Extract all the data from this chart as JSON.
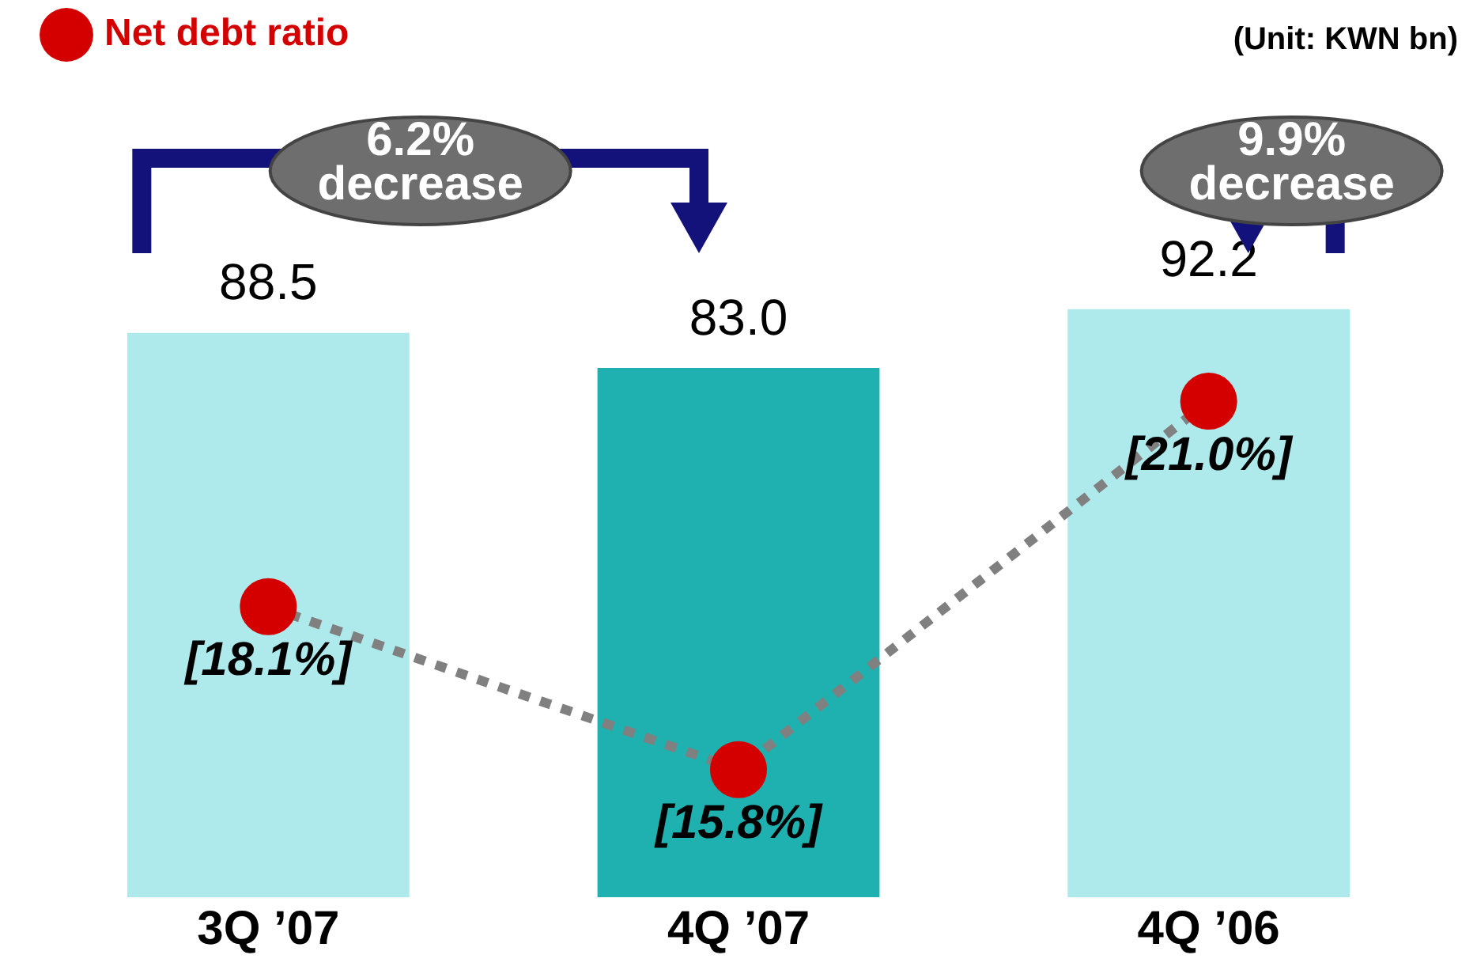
{
  "chart_data": {
    "type": "bar",
    "categories": [
      "3Q ’07",
      "4Q ’07",
      "4Q ’06"
    ],
    "series": [
      {
        "colors": [
          "#aeeaec",
          "#1fb0b0",
          "#aeeaec"
        ],
        "values": [
          88.5,
          83.0,
          92.2
        ],
        "value_labels": [
          "88.5",
          "83.0",
          "92.2"
        ]
      },
      {
        "type": "line",
        "name": "Net debt ratio",
        "color": "#808080",
        "colors": [
          "#d40000",
          "#d40000",
          "#d40000"
        ],
        "axis": "y2",
        "values": [
          18.1,
          15.8,
          21.0
        ],
        "value_labels": [
          "[18.1%]",
          "[15.8%]",
          "[21.0%]"
        ]
      }
    ],
    "annotations": [
      "(Unit: KWN bn)",
      "6.2% decrease",
      "9.9% decrease"
    ],
    "legend": "top left",
    "marker": "circle",
    "line_style": "dotted",
    "grid": false,
    "tick_labels": "x"
  }
}
